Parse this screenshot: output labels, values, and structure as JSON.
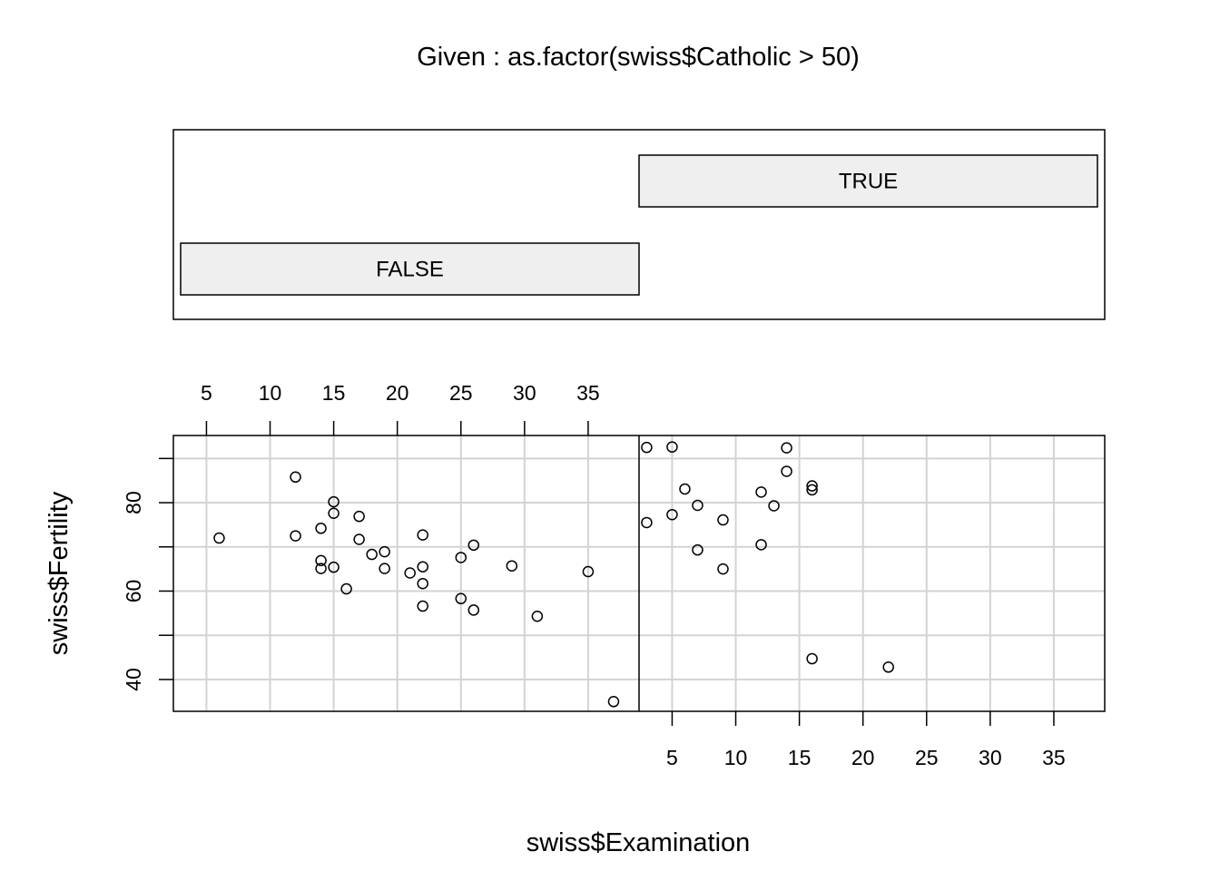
{
  "chart_data": {
    "type": "scatter",
    "title": "Given : as.factor(swiss$Catholic > 50)",
    "xlabel": "swiss$Examination",
    "ylabel": "swiss$Fertility",
    "xlim": [
      2.4,
      39.0
    ],
    "ylim": [
      32.8,
      95.2
    ],
    "x_ticks": [
      5,
      10,
      15,
      20,
      25,
      30,
      35
    ],
    "y_ticks_labeled": [
      40,
      60,
      80
    ],
    "y_ticks_minor": [
      50,
      70,
      90
    ],
    "grid": true,
    "given_levels": [
      "FALSE",
      "TRUE"
    ],
    "panels": [
      {
        "given": "FALSE",
        "x": [
          6,
          12,
          12,
          14,
          14,
          14,
          15,
          15,
          15,
          16,
          17,
          17,
          18,
          19,
          19,
          21,
          22,
          22,
          22,
          22,
          25,
          25,
          26,
          26,
          29,
          31,
          35,
          37
        ],
        "y": [
          72.0,
          85.8,
          72.5,
          74.2,
          66.9,
          65.1,
          80.2,
          77.6,
          65.4,
          60.5,
          76.9,
          71.7,
          68.3,
          68.9,
          65.1,
          64.1,
          72.7,
          65.5,
          61.7,
          56.6,
          67.6,
          58.3,
          70.4,
          55.7,
          65.7,
          54.3,
          64.4,
          35.0
        ]
      },
      {
        "given": "TRUE",
        "x": [
          3,
          3,
          5,
          5,
          6,
          7,
          7,
          9,
          9,
          12,
          12,
          13,
          14,
          14,
          16,
          16,
          16,
          22
        ],
        "y": [
          92.5,
          75.5,
          92.6,
          77.3,
          83.1,
          79.4,
          69.3,
          76.1,
          65.0,
          82.4,
          70.5,
          79.3,
          92.4,
          87.1,
          83.8,
          82.9,
          44.7,
          42.8
        ]
      }
    ]
  }
}
